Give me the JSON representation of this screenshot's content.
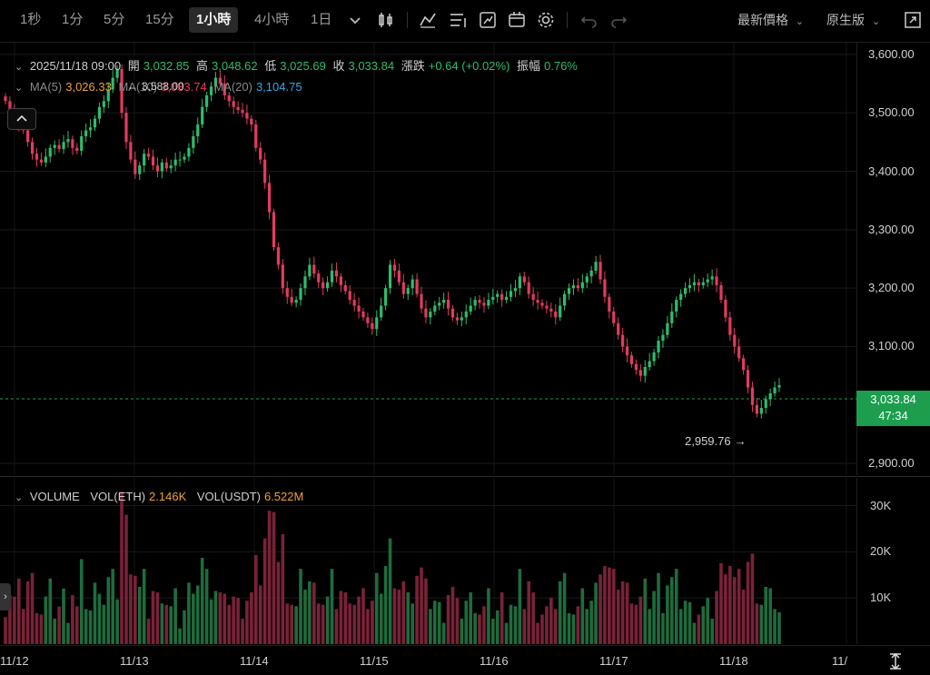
{
  "toolbar": {
    "timeframes": [
      "1秒",
      "1分",
      "5分",
      "15分",
      "1小時",
      "4小時",
      "1日"
    ],
    "active_timeframe": "1小時",
    "price_type": "最新價格",
    "chart_type": "原生版"
  },
  "ohlc": {
    "date": "2025/11/18 09:00",
    "open_label": "開",
    "open": "3,032.85",
    "high_label": "高",
    "high": "3,048.62",
    "low_label": "低",
    "low": "3,025.69",
    "close_label": "收",
    "close": "3,033.84",
    "change_label": "漲跌",
    "change": "+0.64 (+0.02%)",
    "amplitude_label": "振幅",
    "amplitude": "0.76%"
  },
  "ma": {
    "ma5_label": "MA(5)",
    "ma5": "3,026.33",
    "ma10_label": "MA(10)",
    "ma10": "3,033.74",
    "ma20_label": "MA(20)",
    "ma20": "3,104.75"
  },
  "annotations": {
    "high_marker": "3,588.00",
    "low_marker": "2,959.76"
  },
  "current_price": {
    "price": "3,033.84",
    "countdown": "47:34"
  },
  "volume": {
    "title": "VOLUME",
    "eth_label": "VOL(ETH)",
    "eth": "2.146K",
    "usdt_label": "VOL(USDT)",
    "usdt": "6.522M"
  },
  "colors": {
    "up": "#2ebd6b",
    "down": "#e23b5f",
    "ma5": "#f0a030",
    "ma10": "#e23b5f",
    "ma20": "#35a6e8"
  },
  "chart_data": {
    "type": "candlestick",
    "price_axis_ticks": [
      "3,600.00",
      "3,500.00",
      "3,400.00",
      "3,300.00",
      "3,200.00",
      "3,100.00",
      "2,900.00"
    ],
    "price_tick_values": [
      3600,
      3500,
      3400,
      3300,
      3200,
      3100,
      2900
    ],
    "price_range": [
      2880,
      3620
    ],
    "volume_axis_ticks": [
      "30K",
      "20K",
      "10K"
    ],
    "volume_tick_values": [
      30000,
      20000,
      10000
    ],
    "volume_range": [
      0,
      36000
    ],
    "date_labels": [
      "11/12",
      "11/13",
      "11/14",
      "11/15",
      "11/16",
      "11/17",
      "11/18",
      "11/"
    ],
    "closes": [
      3520,
      3505,
      3495,
      3480,
      3470,
      3450,
      3430,
      3420,
      3415,
      3425,
      3440,
      3445,
      3438,
      3450,
      3455,
      3440,
      3435,
      3460,
      3470,
      3475,
      3490,
      3510,
      3520,
      3540,
      3560,
      3575,
      3500,
      3450,
      3420,
      3395,
      3410,
      3430,
      3425,
      3410,
      3400,
      3415,
      3405,
      3410,
      3420,
      3420,
      3425,
      3440,
      3460,
      3480,
      3510,
      3530,
      3545,
      3560,
      3550,
      3530,
      3520,
      3510,
      3505,
      3500,
      3490,
      3480,
      3440,
      3420,
      3380,
      3330,
      3270,
      3240,
      3200,
      3185,
      3175,
      3180,
      3200,
      3220,
      3240,
      3225,
      3210,
      3200,
      3210,
      3230,
      3220,
      3205,
      3195,
      3180,
      3170,
      3160,
      3150,
      3140,
      3130,
      3150,
      3170,
      3200,
      3240,
      3230,
      3210,
      3190,
      3200,
      3215,
      3190,
      3165,
      3150,
      3160,
      3170,
      3175,
      3180,
      3165,
      3150,
      3145,
      3150,
      3160,
      3170,
      3180,
      3175,
      3170,
      3180,
      3185,
      3190,
      3180,
      3185,
      3195,
      3200,
      3220,
      3210,
      3190,
      3180,
      3175,
      3170,
      3165,
      3160,
      3150,
      3170,
      3190,
      3200,
      3205,
      3200,
      3210,
      3220,
      3230,
      3245,
      3215,
      3185,
      3160,
      3140,
      3120,
      3100,
      3085,
      3070,
      3060,
      3050,
      3065,
      3075,
      3090,
      3110,
      3120,
      3140,
      3160,
      3180,
      3190,
      3200,
      3205,
      3210,
      3205,
      3210,
      3215,
      3220,
      3205,
      3180,
      3150,
      3120,
      3100,
      3080,
      3060,
      3030,
      3000,
      2985,
      2995,
      3010,
      3020,
      3030,
      3034
    ]
  }
}
